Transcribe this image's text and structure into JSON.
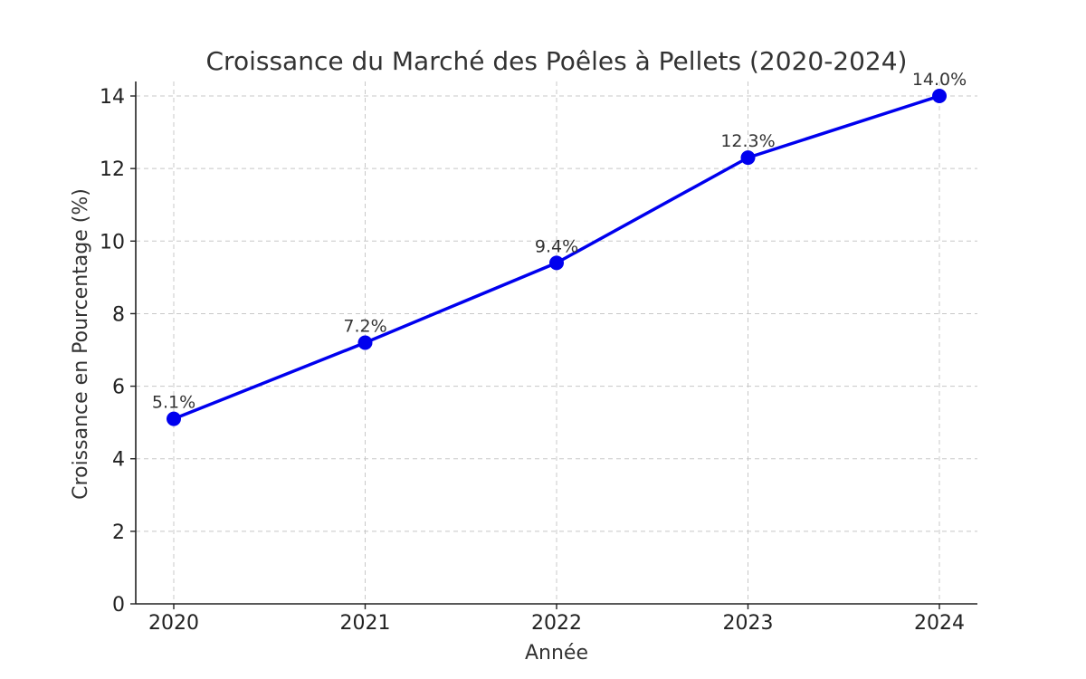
{
  "chart_data": {
    "type": "line",
    "title": "Croissance du Marché des Poêles à Pellets (2020-2024)",
    "xlabel": "Année",
    "ylabel": "Croissance en Pourcentage (%)",
    "categories": [
      "2020",
      "2021",
      "2022",
      "2023",
      "2024"
    ],
    "series": [
      {
        "values": [
          5.1,
          7.2,
          9.4,
          12.3,
          14.0
        ],
        "color": "#0000ee"
      }
    ],
    "data_labels": [
      "5.1%",
      "7.2%",
      "9.4%",
      "12.3%",
      "14.0%"
    ],
    "ylim": [
      0,
      14.4
    ],
    "yticks": [
      0,
      2,
      4,
      6,
      8,
      10,
      12,
      14
    ],
    "grid": true,
    "marker": "circle"
  }
}
